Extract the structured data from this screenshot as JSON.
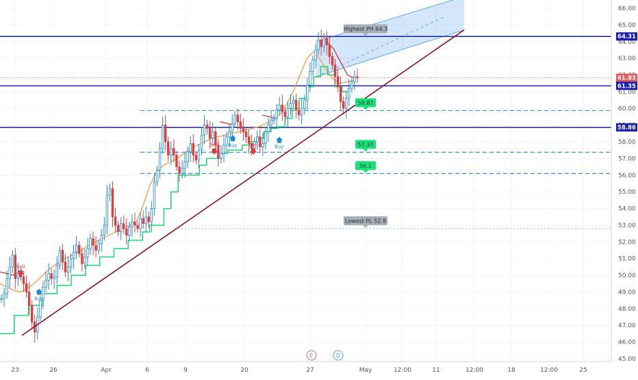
{
  "chart_data": {
    "type": "candlestick",
    "ylim": [
      45,
      66.5
    ],
    "y_ticks": [
      "45.00",
      "46.00",
      "47.00",
      "48.00",
      "49.00",
      "50.00",
      "51.00",
      "52.00",
      "53.00",
      "54.00",
      "55.00",
      "56.00",
      "57.00",
      "58.00",
      "59.00",
      "60.00",
      "61.00",
      "62.00",
      "63.00",
      "64.00",
      "65.00",
      "66.00"
    ],
    "x_ticks": [
      "23",
      "26",
      "Apr",
      "6",
      "9",
      "20",
      "27",
      "May",
      "12:00",
      "11",
      "12:00",
      "18",
      "12:00",
      "25"
    ],
    "price_labels": [
      {
        "value": 64.31,
        "text": "64.31",
        "color": "#1b1fb5"
      },
      {
        "value": 61.83,
        "text": "61.83",
        "color": "#e05a5a"
      },
      {
        "value": 61.35,
        "text": "61.35",
        "color": "#1b1fb5"
      },
      {
        "value": 58.86,
        "text": "58.86",
        "color": "#1b1fb5"
      }
    ],
    "horizontal_levels": [
      64.31,
      61.35,
      58.86
    ],
    "dashed_levels": [
      59.87,
      57.37,
      56.1
    ],
    "dotted_levels": [
      52.8
    ],
    "badges": [
      {
        "text": "Highest PH 64.3",
        "value": 64.3,
        "kind": "gray"
      },
      {
        "text": "59.87",
        "value": 59.87,
        "kind": "green"
      },
      {
        "text": "57.37",
        "value": 57.37,
        "kind": "green"
      },
      {
        "text": "56.1",
        "value": 56.1,
        "kind": "green"
      },
      {
        "text": "Lowest PL 52.8",
        "value": 52.8,
        "kind": "gray"
      }
    ],
    "signals": [
      {
        "text": "Sell",
        "kind": "sell"
      },
      {
        "text": "Buy",
        "kind": "buy"
      },
      {
        "text": "Sell",
        "kind": "sell"
      },
      {
        "text": "Buy",
        "kind": "buy"
      },
      {
        "text": "Sell",
        "kind": "sell"
      },
      {
        "text": "Buy",
        "kind": "buy"
      }
    ],
    "markers": [
      "E",
      "D"
    ],
    "trend_line": {
      "from": 46.4,
      "to": 64.7
    },
    "channel": {
      "low_start": 61.9,
      "low_end": 64.7,
      "high_start": 64.0,
      "high_end": 66.7
    },
    "price_series": [
      48.6,
      48.9,
      49.8,
      50.5,
      51.2,
      49.8,
      50.2,
      49.9,
      49.5,
      49.0,
      48.2,
      47.2,
      46.6,
      47.5,
      48.5,
      49.3,
      49.7,
      50.1,
      49.8,
      49.9,
      50.6,
      51.5,
      50.8,
      50.2,
      50.5,
      51.0,
      51.4,
      51.8,
      51.3,
      50.7,
      51.1,
      51.6,
      52.2,
      51.8,
      51.5,
      51.9,
      52.4,
      53.0,
      54.8,
      55.2,
      53.5,
      53.0,
      52.6,
      53.1,
      52.8,
      52.4,
      52.9,
      53.2,
      53.0,
      52.8,
      53.4,
      53.1,
      53.5,
      53.2,
      54.0,
      55.6,
      56.3,
      57.6,
      59.0,
      58.0,
      57.2,
      57.6,
      57.2,
      56.5,
      56.1,
      56.4,
      56.8,
      57.4,
      57.9,
      57.2,
      56.9,
      57.5,
      58.4,
      59.0,
      58.8,
      58.2,
      58.6,
      57.8,
      57.0,
      57.3,
      57.8,
      58.3,
      58.6,
      59.1,
      59.6,
      59.2,
      58.8,
      58.6,
      58.3,
      57.9,
      57.6,
      58.0,
      58.3,
      57.7,
      57.9,
      58.6,
      59.0,
      59.3,
      59.4,
      59.9,
      60.2,
      59.8,
      59.5,
      60.0,
      60.3,
      60.5,
      59.9,
      59.6,
      60.0,
      60.5,
      61.4,
      62.2,
      62.9,
      63.5,
      64.1,
      63.7,
      64.2,
      63.8,
      63.1,
      62.6,
      61.9,
      61.3,
      60.4,
      60.0,
      60.6,
      61.2,
      61.6,
      61.9,
      61.83
    ],
    "ema_series": [
      49.5,
      49.3,
      49.1,
      49.0,
      49.2,
      49.5,
      49.9,
      50.3,
      50.6,
      50.9,
      51.1,
      51.3,
      51.5,
      51.8,
      52.0,
      52.2,
      52.4,
      52.6,
      52.8,
      53.0,
      53.2,
      54.2,
      55.4,
      56.2,
      56.6,
      56.8,
      57.0,
      57.3,
      57.6,
      57.8,
      58.0,
      58.2,
      58.3,
      58.4,
      58.5,
      58.6,
      58.7,
      58.8,
      58.9,
      59.1,
      59.3,
      59.6,
      60.2,
      61.0,
      62.0,
      63.0,
      63.4,
      62.9,
      62.2,
      61.7,
      61.5,
      61.6,
      61.7
    ],
    "stop_series": [
      46.5,
      46.5,
      47.6,
      47.6,
      48.2,
      48.2,
      48.9,
      48.9,
      49.4,
      49.4,
      50.0,
      50.0,
      50.6,
      50.6,
      51.1,
      51.1,
      51.6,
      51.6,
      52.1,
      52.1,
      52.6,
      53.0,
      53.0,
      54.0,
      55.0,
      56.0,
      56.0,
      56.0,
      56.6,
      57.0,
      57.0,
      57.3,
      57.5,
      57.5,
      57.8,
      58.0,
      58.2,
      58.6,
      58.8,
      58.9,
      59.4,
      60.0,
      60.6,
      61.3,
      61.9,
      62.5,
      62.0,
      61.3,
      61.0,
      60.9
    ],
    "resistance_series": [
      50.2,
      50.1,
      50.0,
      49.9,
      null,
      null,
      null,
      null,
      null,
      null,
      null,
      null,
      null,
      null,
      null,
      null,
      null,
      null,
      null,
      null,
      null,
      null,
      null,
      null,
      null,
      null,
      null,
      null,
      null,
      null,
      null,
      59.2,
      59.1,
      59.0,
      null,
      null,
      null,
      59.6,
      59.5,
      59.4,
      null,
      null,
      null,
      null,
      null,
      null,
      64.0,
      63.6,
      62.8,
      62.0,
      61.8
    ]
  }
}
